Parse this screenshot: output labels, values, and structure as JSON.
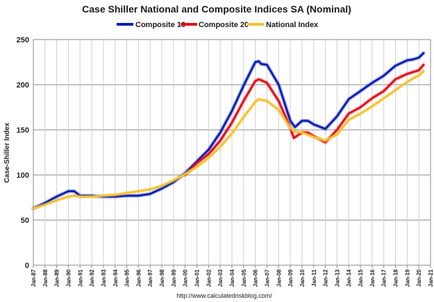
{
  "chart_data": {
    "type": "line",
    "title": "Case Shiller National and Composite Indices SA (Nominal)",
    "ylabel": "Case-Shiller Index",
    "xlabel": "",
    "source": "http://www.calculatedriskblog.com/",
    "ylim": [
      0,
      250
    ],
    "xlim": [
      1987,
      2021
    ],
    "yticks": [
      0,
      50,
      100,
      150,
      200,
      250
    ],
    "xtick_labels": [
      "Jan-87",
      "Jan-88",
      "Jan-89",
      "Jan-90",
      "Jan-91",
      "Jan-92",
      "Jan-93",
      "Jan-94",
      "Jan-95",
      "Jan-96",
      "Jan-97",
      "Jan-98",
      "Jan-99",
      "Jan-00",
      "Jan-01",
      "Jan-02",
      "Jan-03",
      "Jan-04",
      "Jan-05",
      "Jan-06",
      "Jan-07",
      "Jan-08",
      "Jan-09",
      "Jan-10",
      "Jan-11",
      "Jan-12",
      "Jan-13",
      "Jan-14",
      "Jan-15",
      "Jan-16",
      "Jan-17",
      "Jan-18",
      "Jan-19",
      "Jan-20",
      "Jan-21"
    ],
    "grid": "vertical",
    "legend_position": "top",
    "series": [
      {
        "name": "Composite 10",
        "color": "#0a1fb4",
        "x": [
          1987.0,
          1988.0,
          1989.0,
          1990.0,
          1990.5,
          1991.0,
          1992.0,
          1993.0,
          1994.0,
          1995.0,
          1996.0,
          1997.0,
          1998.0,
          1999.0,
          2000.0,
          2001.0,
          2002.0,
          2003.0,
          2004.0,
          2005.0,
          2006.0,
          2006.3,
          2006.5,
          2007.0,
          2008.0,
          2009.0,
          2009.4,
          2010.0,
          2010.5,
          2011.0,
          2012.0,
          2013.0,
          2014.0,
          2015.0,
          2016.0,
          2017.0,
          2018.0,
          2019.0,
          2019.5,
          2020.0,
          2020.4
        ],
        "y": [
          63,
          69,
          76,
          82,
          82,
          77,
          77,
          76,
          76,
          77,
          77,
          79,
          85,
          92,
          102,
          115,
          128,
          147,
          171,
          199,
          225,
          226,
          223,
          222,
          200,
          160,
          153,
          160,
          160,
          156,
          151,
          165,
          184,
          193,
          202,
          210,
          221,
          227,
          228,
          230,
          235
        ]
      },
      {
        "name": "Composite 20",
        "color": "#e0101a",
        "x": [
          2000.0,
          2001.0,
          2002.0,
          2003.0,
          2004.0,
          2005.0,
          2006.0,
          2006.3,
          2006.5,
          2007.0,
          2008.0,
          2009.0,
          2009.3,
          2010.0,
          2010.5,
          2011.0,
          2012.0,
          2013.0,
          2014.0,
          2015.0,
          2016.0,
          2017.0,
          2018.0,
          2019.0,
          2019.5,
          2020.0,
          2020.4
        ],
        "y": [
          100,
          113,
          123,
          138,
          158,
          182,
          204,
          206,
          205,
          202,
          182,
          152,
          141,
          147,
          147,
          143,
          136,
          150,
          168,
          175,
          185,
          193,
          206,
          212,
          214,
          216,
          222
        ]
      },
      {
        "name": "National Index",
        "color": "#f4c232",
        "x": [
          1987.0,
          1988.0,
          1989.0,
          1990.0,
          1990.5,
          1991.0,
          1992.0,
          1993.0,
          1994.0,
          1995.0,
          1996.0,
          1997.0,
          1998.0,
          1999.0,
          2000.0,
          2001.0,
          2002.0,
          2003.0,
          2004.0,
          2005.0,
          2006.0,
          2006.3,
          2006.6,
          2007.0,
          2008.0,
          2009.0,
          2009.4,
          2010.0,
          2011.0,
          2012.0,
          2013.0,
          2014.0,
          2015.0,
          2016.0,
          2017.0,
          2018.0,
          2019.0,
          2019.5,
          2020.0,
          2020.4
        ],
        "y": [
          63,
          67,
          72,
          76,
          77,
          76,
          76,
          77,
          78,
          80,
          82,
          84,
          88,
          94,
          101,
          109,
          119,
          131,
          146,
          164,
          181,
          184,
          183,
          182,
          172,
          152,
          148,
          147,
          142,
          138,
          145,
          161,
          168,
          176,
          185,
          194,
          203,
          207,
          210,
          215
        ]
      }
    ]
  }
}
